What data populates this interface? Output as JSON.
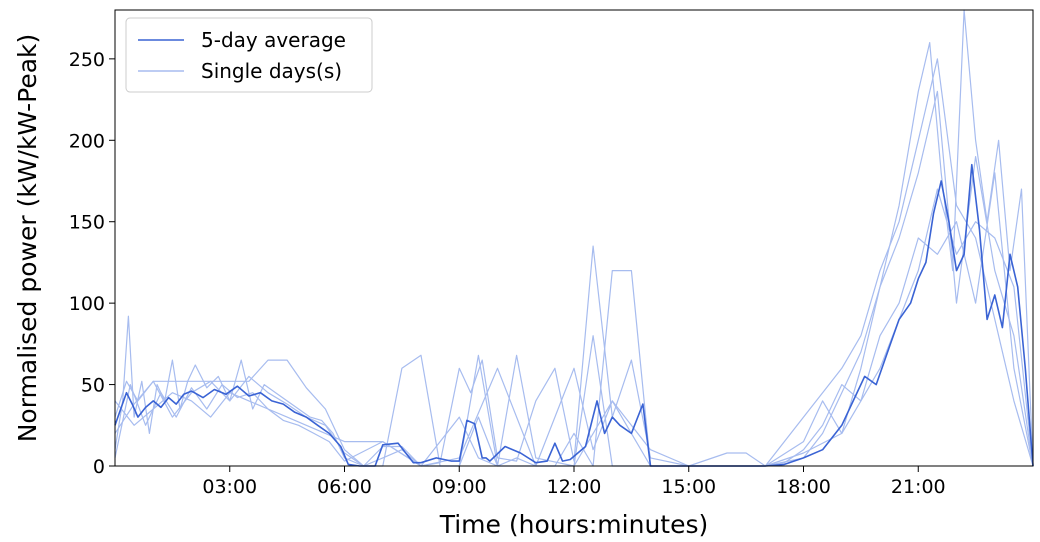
{
  "colors": {
    "average": "#3a63d4",
    "single": "#a7bcef"
  },
  "chart_data": {
    "type": "line",
    "title": "",
    "xlabel": "Time (hours:minutes)",
    "ylabel": "Normalised power (kW/kW-Peak)",
    "xlim": [
      0,
      24
    ],
    "ylim": [
      0,
      280
    ],
    "x_ticks": [
      3,
      6,
      9,
      12,
      15,
      18,
      21
    ],
    "x_tick_labels": [
      "03:00",
      "06:00",
      "09:00",
      "12:00",
      "15:00",
      "18:00",
      "21:00"
    ],
    "y_ticks": [
      0,
      50,
      100,
      150,
      200,
      250
    ],
    "y_tick_labels": [
      "0",
      "50",
      "100",
      "150",
      "200",
      "250"
    ],
    "grid": false,
    "legend_position": "top-left",
    "series": [
      {
        "name": "5-day average",
        "role": "average",
        "x": [
          0,
          0.15,
          0.3,
          0.45,
          0.6,
          0.8,
          1.0,
          1.2,
          1.4,
          1.6,
          1.8,
          2.0,
          2.3,
          2.6,
          2.9,
          3.2,
          3.5,
          3.8,
          4.1,
          4.4,
          4.7,
          5.0,
          5.3,
          5.6,
          5.9,
          6.1,
          6.4,
          6.8,
          7.0,
          7.4,
          7.8,
          8.0,
          8.4,
          8.8,
          9.0,
          9.2,
          9.4,
          9.6,
          9.7,
          9.8,
          10.2,
          10.6,
          11.0,
          11.3,
          11.5,
          11.7,
          11.9,
          12.3,
          12.6,
          12.8,
          13.0,
          13.2,
          13.5,
          13.8,
          14.0,
          14.2,
          15.0,
          16.0,
          17.0,
          17.5,
          18.0,
          18.5,
          19.0,
          19.3,
          19.6,
          19.9,
          20.2,
          20.5,
          20.8,
          21.0,
          21.2,
          21.4,
          21.6,
          21.8,
          22.0,
          22.2,
          22.4,
          22.6,
          22.8,
          23.0,
          23.2,
          23.4,
          23.6,
          23.8,
          24.0
        ],
        "y": [
          25,
          35,
          45,
          38,
          30,
          36,
          40,
          36,
          42,
          38,
          44,
          46,
          42,
          47,
          44,
          49,
          43,
          45,
          40,
          38,
          33,
          30,
          25,
          20,
          12,
          1,
          0,
          0,
          13,
          14,
          2,
          2,
          5,
          3,
          3,
          28,
          26,
          5,
          5,
          3,
          12,
          8,
          2,
          3,
          14,
          3,
          4,
          12,
          40,
          20,
          30,
          25,
          20,
          38,
          0,
          0,
          0,
          0,
          0,
          1,
          5,
          10,
          25,
          40,
          55,
          50,
          70,
          90,
          100,
          115,
          125,
          155,
          175,
          150,
          120,
          130,
          185,
          145,
          90,
          105,
          85,
          130,
          110,
          60,
          0
        ]
      },
      {
        "name": "Single days(s)",
        "role": "single",
        "x": [
          0,
          0.2,
          0.35,
          0.5,
          0.7,
          0.9,
          1.1,
          1.3,
          1.5,
          1.7,
          1.9,
          2.1,
          2.4,
          2.7,
          3.0,
          3.3,
          3.6,
          3.9,
          4.2,
          4.5,
          4.8,
          5.1,
          5.4,
          5.7,
          6.0,
          6.5,
          7.0,
          7.5,
          8.0,
          8.5,
          9.0,
          9.3,
          9.6,
          10.0,
          10.5,
          11.0,
          11.5,
          12.0,
          12.5,
          13.0,
          13.5,
          14.0,
          15.0,
          16.0,
          17.0,
          18.0,
          18.5,
          19.0,
          19.5,
          20.0,
          20.5,
          21.0,
          21.3,
          21.6,
          21.9,
          22.2,
          22.5,
          22.8,
          23.1,
          23.4,
          23.7,
          24.0
        ],
        "y": [
          10,
          40,
          92,
          30,
          52,
          20,
          50,
          40,
          65,
          35,
          52,
          62,
          48,
          55,
          40,
          65,
          35,
          50,
          45,
          40,
          35,
          30,
          28,
          20,
          5,
          0,
          5,
          10,
          0,
          2,
          60,
          45,
          65,
          5,
          3,
          40,
          60,
          3,
          135,
          30,
          65,
          5,
          0,
          0,
          0,
          5,
          20,
          45,
          70,
          110,
          160,
          230,
          260,
          180,
          120,
          280,
          200,
          150,
          200,
          120,
          170,
          0
        ]
      },
      {
        "name": "",
        "role": "single",
        "x": [
          0,
          0.3,
          0.6,
          1.0,
          1.5,
          2.0,
          2.5,
          3.0,
          3.5,
          4.0,
          4.5,
          5.0,
          5.5,
          6.0,
          6.5,
          7.0,
          7.5,
          8.0,
          8.5,
          9.0,
          9.5,
          10.0,
          10.5,
          11.0,
          11.5,
          12.0,
          12.5,
          13.0,
          13.5,
          14.0,
          15.0,
          16.0,
          17.0,
          18.0,
          19.0,
          19.5,
          20.0,
          20.5,
          21.0,
          21.5,
          22.0,
          22.5,
          23.0,
          23.5,
          24.0
        ],
        "y": [
          30,
          52,
          40,
          52,
          52,
          52,
          52,
          52,
          52,
          65,
          65,
          48,
          35,
          10,
          0,
          0,
          60,
          68,
          0,
          0,
          68,
          0,
          5,
          0,
          0,
          20,
          0,
          120,
          120,
          0,
          0,
          0,
          0,
          30,
          60,
          80,
          120,
          150,
          200,
          250,
          160,
          140,
          90,
          40,
          0
        ]
      },
      {
        "name": "",
        "role": "single",
        "x": [
          0,
          0.5,
          1.0,
          1.5,
          2.0,
          2.5,
          3.0,
          3.5,
          4.0,
          4.5,
          5.0,
          5.5,
          6.0,
          7.0,
          8.0,
          9.0,
          10.0,
          11.0,
          12.0,
          12.5,
          13.0,
          13.5,
          14.0,
          15.0,
          16.0,
          16.5,
          17.0,
          18.0,
          19.0,
          19.5,
          20.0,
          20.5,
          21.0,
          21.5,
          22.0,
          22.5,
          23.0,
          23.5,
          24.0
        ],
        "y": [
          40,
          25,
          35,
          45,
          40,
          30,
          45,
          40,
          35,
          30,
          25,
          20,
          15,
          15,
          0,
          5,
          60,
          0,
          60,
          10,
          40,
          20,
          0,
          0,
          8,
          8,
          0,
          8,
          20,
          40,
          60,
          90,
          120,
          170,
          130,
          150,
          140,
          110,
          0
        ]
      },
      {
        "name": "",
        "role": "single",
        "x": [
          0,
          0.4,
          0.8,
          1.2,
          1.6,
          2.0,
          2.4,
          2.8,
          3.2,
          3.6,
          4.0,
          4.4,
          4.8,
          5.2,
          5.6,
          6.0,
          7.0,
          8.0,
          9.0,
          9.5,
          10.0,
          10.5,
          11.0,
          12.0,
          13.0,
          14.0,
          15.0,
          16.0,
          17.0,
          17.5,
          18.0,
          18.5,
          19.0,
          19.5,
          20.0,
          20.5,
          21.0,
          21.5,
          22.0,
          22.5,
          23.0,
          23.5,
          24.0
        ],
        "y": [
          5,
          50,
          25,
          45,
          30,
          48,
          35,
          50,
          42,
          45,
          35,
          28,
          25,
          20,
          15,
          3,
          15,
          0,
          30,
          5,
          0,
          68,
          5,
          0,
          40,
          10,
          0,
          0,
          0,
          2,
          10,
          25,
          50,
          40,
          80,
          100,
          140,
          130,
          150,
          100,
          180,
          60,
          0
        ]
      },
      {
        "name": "",
        "role": "single",
        "x": [
          0,
          0.5,
          1.0,
          1.5,
          2.0,
          2.5,
          3.0,
          3.5,
          4.0,
          4.5,
          5.0,
          5.5,
          6.0,
          6.5,
          7.0,
          7.5,
          8.0,
          8.5,
          9.0,
          9.5,
          10.0,
          11.0,
          12.0,
          12.5,
          13.0,
          14.0,
          15.0,
          16.0,
          17.0,
          18.0,
          18.5,
          19.0,
          19.5,
          20.0,
          20.5,
          21.0,
          21.5,
          22.0,
          22.5,
          23.0,
          23.5,
          24.0
        ],
        "y": [
          20,
          38,
          52,
          30,
          45,
          52,
          40,
          55,
          45,
          38,
          30,
          25,
          8,
          0,
          12,
          12,
          0,
          0,
          0,
          30,
          0,
          0,
          0,
          80,
          0,
          0,
          0,
          0,
          0,
          15,
          40,
          20,
          60,
          110,
          140,
          180,
          230,
          100,
          190,
          120,
          80,
          0
        ]
      }
    ]
  }
}
